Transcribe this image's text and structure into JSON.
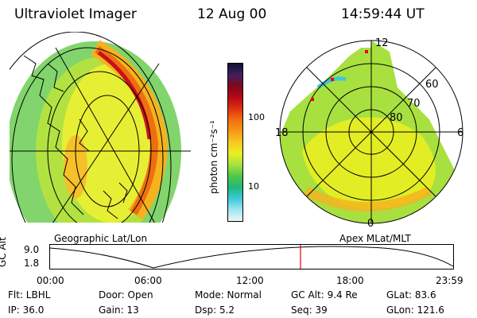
{
  "header": {
    "title": "Ultraviolet Imager",
    "date": "12 Aug 00",
    "time": "14:59:44 UT"
  },
  "panels": {
    "geographic_label": "Geographic Lat/Lon",
    "apex_label": "Apex MLat/MLT"
  },
  "colorbar": {
    "unit_label": "photon cm⁻²s⁻¹",
    "ticks": [
      "100",
      "10"
    ],
    "colors": [
      "#f4f4f4",
      "#9ee6f0",
      "#3ec8d8",
      "#21b97a",
      "#4dc84a",
      "#a8e040",
      "#e8f020",
      "#f8c820",
      "#f89818",
      "#f07010",
      "#e03010",
      "#b80818",
      "#800818",
      "#402060",
      "#101030"
    ]
  },
  "polar_grid": {
    "mlt_labels": [
      "12",
      "18",
      "6",
      "0"
    ],
    "lat_labels": [
      "60",
      "70",
      "80"
    ]
  },
  "timeline": {
    "axis_label": "GC Alt",
    "y_ticks": [
      "9.0",
      "1.8"
    ],
    "x_ticks": [
      "00:00",
      "06:00",
      "12:00",
      "18:00",
      "23:59"
    ],
    "marker_color": "#e00000"
  },
  "info": {
    "flt": "Flt: LBHL",
    "door": "Door: Open",
    "mode": "Mode: Normal",
    "gc_alt": "GC Alt: 9.4 Re",
    "glat": "GLat:  83.6",
    "ip": "IP: 36.0",
    "gain": "Gain: 13",
    "dsp": "Dsp:    5.2",
    "seq": "Seq: 39",
    "glon": "GLon: 121.6"
  }
}
